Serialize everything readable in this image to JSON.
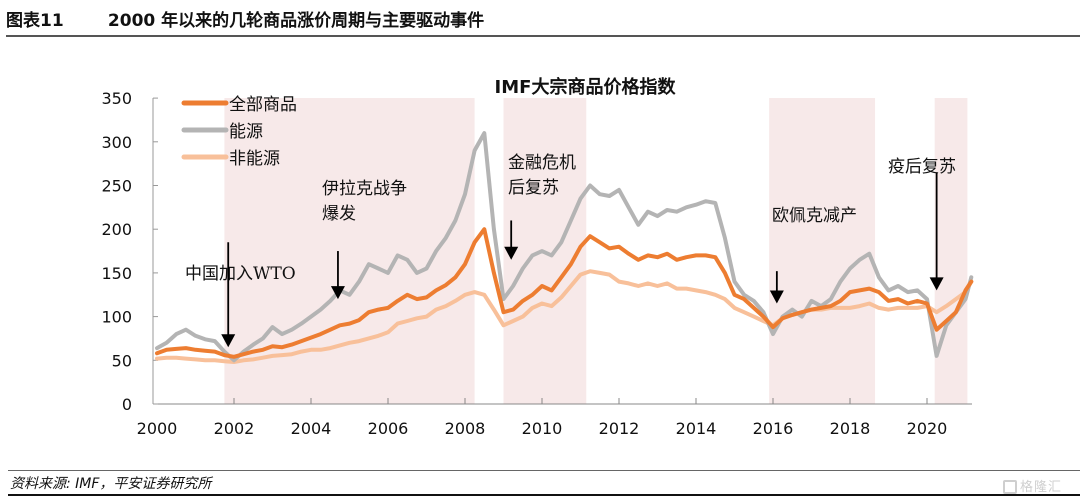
{
  "header": {
    "figure_no": "图表11",
    "title": "2000 年以来的几轮商品涨价周期与主要驱动事件"
  },
  "footer": {
    "source": "资料来源: IMF，平安证券研究所",
    "watermark": "格隆汇"
  },
  "colors": {
    "all_commodities": "#ED7D31",
    "energy": "#B4B4B4",
    "non_energy": "#F8C09A",
    "shade": "#F7E9E9"
  },
  "chart_data": {
    "type": "line",
    "title": "IMF大宗商品价格指数",
    "xlabel": "",
    "ylabel": "",
    "xlim": [
      2000,
      2021.2
    ],
    "ylim": [
      0,
      350
    ],
    "xticks": [
      2000,
      2002,
      2004,
      2006,
      2008,
      2010,
      2012,
      2014,
      2016,
      2018,
      2020
    ],
    "xtick_labels": [
      "2000",
      "2002",
      "2004",
      "2006",
      "2008",
      "2010",
      "2012",
      "2014",
      "2016",
      "2018",
      "2020"
    ],
    "yticks": [
      0,
      50,
      100,
      150,
      200,
      250,
      300,
      350
    ],
    "ytick_labels": [
      "0",
      "50",
      "100",
      "150",
      "200",
      "250",
      "300",
      "350"
    ],
    "grid": false,
    "legend_position": "top-left",
    "shaded_periods": [
      {
        "start": 2001.75,
        "end": 2008.25
      },
      {
        "start": 2009.0,
        "end": 2011.15
      },
      {
        "start": 2015.9,
        "end": 2018.65
      },
      {
        "start": 2020.2,
        "end": 2021.05
      }
    ],
    "x": [
      2000.0,
      2000.25,
      2000.5,
      2000.75,
      2001.0,
      2001.25,
      2001.5,
      2001.75,
      2002.0,
      2002.25,
      2002.5,
      2002.75,
      2003.0,
      2003.25,
      2003.5,
      2003.75,
      2004.0,
      2004.25,
      2004.5,
      2004.75,
      2005.0,
      2005.25,
      2005.5,
      2005.75,
      2006.0,
      2006.25,
      2006.5,
      2006.75,
      2007.0,
      2007.25,
      2007.5,
      2007.75,
      2008.0,
      2008.25,
      2008.5,
      2008.75,
      2009.0,
      2009.25,
      2009.5,
      2009.75,
      2010.0,
      2010.25,
      2010.5,
      2010.75,
      2011.0,
      2011.25,
      2011.5,
      2011.75,
      2012.0,
      2012.25,
      2012.5,
      2012.75,
      2013.0,
      2013.25,
      2013.5,
      2013.75,
      2014.0,
      2014.25,
      2014.5,
      2014.75,
      2015.0,
      2015.25,
      2015.5,
      2015.75,
      2016.0,
      2016.25,
      2016.5,
      2016.75,
      2017.0,
      2017.25,
      2017.5,
      2017.75,
      2018.0,
      2018.25,
      2018.5,
      2018.75,
      2019.0,
      2019.25,
      2019.5,
      2019.75,
      2020.0,
      2020.25,
      2020.5,
      2020.75,
      2021.0,
      2021.15
    ],
    "series": [
      {
        "name": "全部商品",
        "values": [
          58,
          62,
          63,
          64,
          62,
          61,
          60,
          56,
          54,
          57,
          60,
          62,
          66,
          65,
          68,
          72,
          76,
          80,
          85,
          90,
          92,
          96,
          105,
          108,
          110,
          118,
          125,
          120,
          122,
          130,
          136,
          145,
          160,
          185,
          200,
          150,
          105,
          108,
          118,
          125,
          135,
          130,
          145,
          160,
          180,
          192,
          185,
          178,
          180,
          172,
          165,
          170,
          168,
          172,
          165,
          168,
          170,
          170,
          168,
          150,
          125,
          120,
          110,
          100,
          88,
          98,
          102,
          105,
          108,
          110,
          112,
          118,
          128,
          130,
          132,
          128,
          118,
          120,
          115,
          118,
          115,
          85,
          95,
          105,
          130,
          140
        ]
      },
      {
        "name": "能源",
        "values": [
          64,
          70,
          80,
          85,
          78,
          74,
          72,
          60,
          50,
          60,
          68,
          75,
          88,
          80,
          85,
          92,
          100,
          108,
          118,
          130,
          125,
          140,
          160,
          155,
          150,
          170,
          165,
          150,
          155,
          175,
          190,
          210,
          240,
          290,
          310,
          200,
          120,
          135,
          155,
          170,
          175,
          170,
          185,
          210,
          235,
          250,
          240,
          238,
          245,
          225,
          205,
          220,
          215,
          222,
          220,
          225,
          228,
          232,
          230,
          190,
          140,
          125,
          118,
          105,
          80,
          100,
          108,
          100,
          118,
          112,
          120,
          140,
          155,
          165,
          172,
          145,
          130,
          135,
          128,
          130,
          120,
          55,
          90,
          105,
          120,
          145
        ]
      },
      {
        "name": "非能源",
        "values": [
          52,
          53,
          53,
          52,
          51,
          50,
          50,
          49,
          48,
          50,
          51,
          53,
          55,
          56,
          57,
          60,
          62,
          62,
          64,
          67,
          70,
          72,
          75,
          78,
          82,
          92,
          95,
          98,
          100,
          108,
          112,
          118,
          125,
          128,
          125,
          108,
          90,
          95,
          100,
          110,
          115,
          112,
          122,
          135,
          148,
          152,
          150,
          148,
          140,
          138,
          135,
          138,
          135,
          138,
          132,
          132,
          130,
          128,
          125,
          120,
          110,
          105,
          100,
          95,
          90,
          98,
          102,
          105,
          108,
          108,
          110,
          110,
          110,
          112,
          115,
          110,
          108,
          110,
          110,
          110,
          112,
          105,
          112,
          120,
          128,
          140
        ]
      }
    ],
    "annotations": [
      {
        "text_lines": [
          "中国加入WTO"
        ],
        "arrow_x": 2001.85,
        "arrow_y_from": 185,
        "arrow_y_to": 65
      },
      {
        "text_lines": [
          "伊拉克战争",
          "爆发"
        ],
        "arrow_x": 2004.7,
        "arrow_y_from": 175,
        "arrow_y_to": 120
      },
      {
        "text_lines": [
          "金融危机",
          "后复苏"
        ],
        "arrow_x": 2009.2,
        "arrow_y_from": 210,
        "arrow_y_to": 165
      },
      {
        "text_lines": [
          "欧佩克减产"
        ],
        "arrow_x": 2016.1,
        "arrow_y_from": 152,
        "arrow_y_to": 115
      },
      {
        "text_lines": [
          "疫后复苏"
        ],
        "arrow_x": 2020.25,
        "arrow_y_from": 265,
        "arrow_y_to": 130
      }
    ]
  }
}
